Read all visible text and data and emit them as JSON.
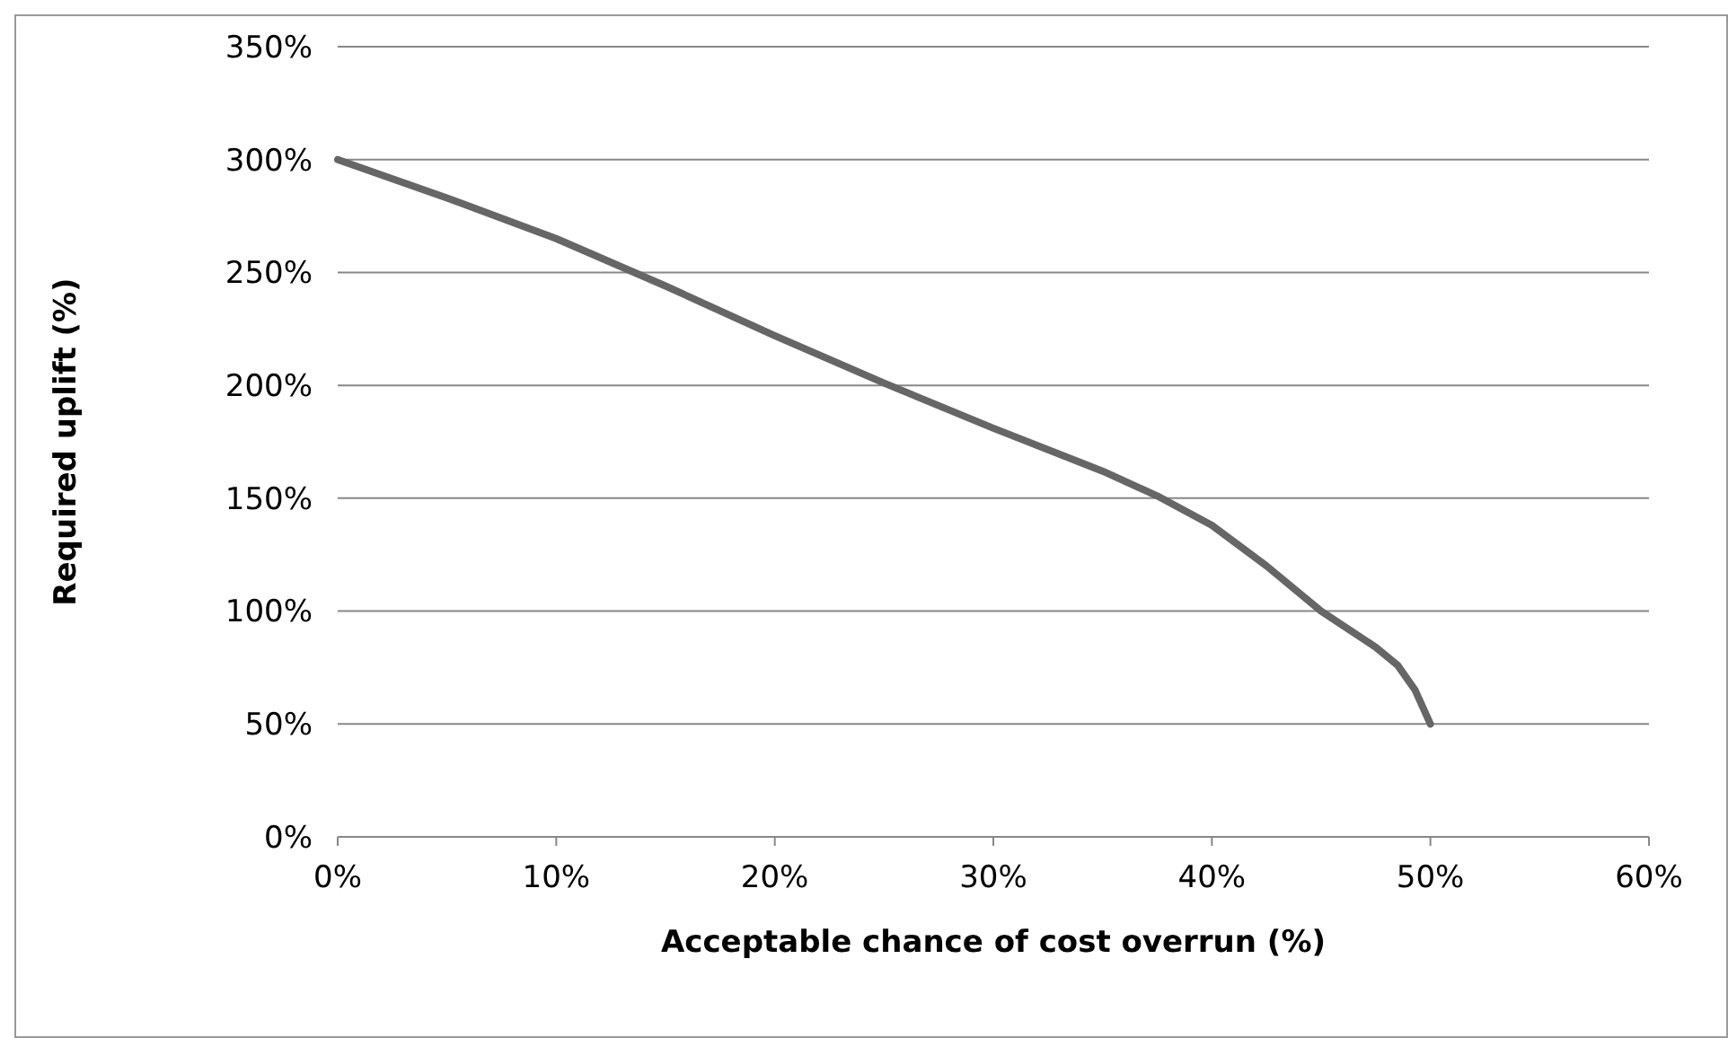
{
  "chart_data": {
    "type": "line",
    "xlabel": "Acceptable chance of cost overrun (%)",
    "ylabel": "Required uplift (%)",
    "xlim": [
      0,
      60
    ],
    "xticks": [
      {
        "value": 0,
        "label": "0%"
      },
      {
        "value": 10,
        "label": "10%"
      },
      {
        "value": 20,
        "label": "20%"
      },
      {
        "value": 30,
        "label": "30%"
      },
      {
        "value": 40,
        "label": "40%"
      },
      {
        "value": 50,
        "label": "50%"
      },
      {
        "value": 60,
        "label": "60%"
      }
    ],
    "ylim": [
      0,
      350
    ],
    "yticks": [
      {
        "value": 0,
        "label": "0%"
      },
      {
        "value": 50,
        "label": "50%"
      },
      {
        "value": 100,
        "label": "100%"
      },
      {
        "value": 150,
        "label": "150%"
      },
      {
        "value": 200,
        "label": "200%"
      },
      {
        "value": 250,
        "label": "250%"
      },
      {
        "value": 300,
        "label": "300%"
      },
      {
        "value": 350,
        "label": "350%"
      }
    ],
    "grid": "y",
    "marker": "none",
    "line_style": "solid",
    "series": [
      {
        "color": "#666666",
        "x": [
          0,
          5,
          10,
          15,
          20,
          25,
          30,
          35,
          37.5,
          40,
          42.5,
          45,
          47.5,
          48.5,
          49.3,
          50
        ],
        "values": [
          300,
          283,
          265,
          244,
          222,
          201,
          181,
          162,
          151,
          138,
          120,
          100,
          84,
          76,
          65,
          50
        ]
      }
    ]
  }
}
